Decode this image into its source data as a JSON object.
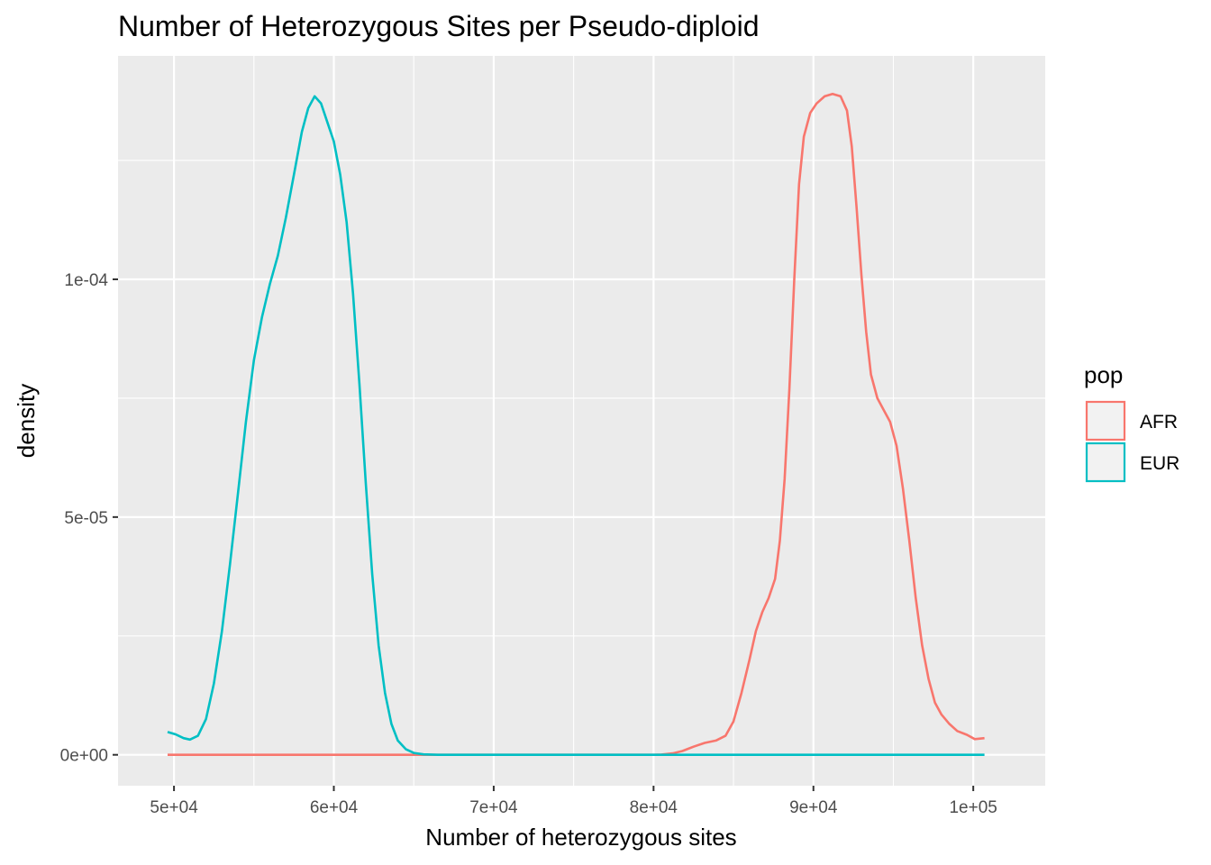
{
  "chart_data": {
    "type": "line",
    "title": "Number of Heterozygous Sites per Pseudo-diploid",
    "xlabel": "Number of heterozygous sites",
    "ylabel": "density",
    "xlim": [
      46500,
      104500
    ],
    "ylim": [
      -6.5e-06,
      0.000147
    ],
    "x_ticks": [
      {
        "value": 50000,
        "label": "5e+04"
      },
      {
        "value": 60000,
        "label": "6e+04"
      },
      {
        "value": 70000,
        "label": "7e+04"
      },
      {
        "value": 80000,
        "label": "8e+04"
      },
      {
        "value": 90000,
        "label": "9e+04"
      },
      {
        "value": 100000,
        "label": "1e+05"
      }
    ],
    "y_ticks": [
      {
        "value": 0,
        "label": "0e+00"
      },
      {
        "value": 5e-05,
        "label": "5e-05"
      },
      {
        "value": 0.0001,
        "label": "1e-04"
      }
    ],
    "grid": true,
    "panel_background": "#ebebeb",
    "legend": {
      "title": "pop",
      "position": "right"
    },
    "series": [
      {
        "name": "AFR",
        "color": "#f8766d",
        "points": [
          [
            49600,
            0
          ],
          [
            60000,
            0
          ],
          [
            70000,
            0
          ],
          [
            80000,
            0
          ],
          [
            80500,
            5e-08
          ],
          [
            81200,
            3e-07
          ],
          [
            81800,
            8e-07
          ],
          [
            82500,
            1.7e-06
          ],
          [
            83200,
            2.5e-06
          ],
          [
            83900,
            3e-06
          ],
          [
            84500,
            4e-06
          ],
          [
            85000,
            7e-06
          ],
          [
            85500,
            1.3e-05
          ],
          [
            86000,
            2e-05
          ],
          [
            86400,
            2.6e-05
          ],
          [
            86800,
            3e-05
          ],
          [
            87200,
            3.3e-05
          ],
          [
            87600,
            3.7e-05
          ],
          [
            87900,
            4.5e-05
          ],
          [
            88200,
            5.8e-05
          ],
          [
            88500,
            7.7e-05
          ],
          [
            88800,
            0.0001
          ],
          [
            89100,
            0.00012
          ],
          [
            89400,
            0.00013
          ],
          [
            89800,
            0.000135
          ],
          [
            90200,
            0.000137
          ],
          [
            90700,
            0.0001385
          ],
          [
            91200,
            0.000139
          ],
          [
            91700,
            0.0001385
          ],
          [
            92100,
            0.0001355
          ],
          [
            92400,
            0.000128
          ],
          [
            92700,
            0.000115
          ],
          [
            93000,
            0.000101
          ],
          [
            93300,
            8.9e-05
          ],
          [
            93600,
            8e-05
          ],
          [
            94000,
            7.5e-05
          ],
          [
            94400,
            7.25e-05
          ],
          [
            94800,
            7e-05
          ],
          [
            95200,
            6.5e-05
          ],
          [
            95600,
            5.6e-05
          ],
          [
            96000,
            4.5e-05
          ],
          [
            96400,
            3.3e-05
          ],
          [
            96800,
            2.3e-05
          ],
          [
            97200,
            1.6e-05
          ],
          [
            97600,
            1.1e-05
          ],
          [
            98000,
            8.5e-06
          ],
          [
            98500,
            6.5e-06
          ],
          [
            99000,
            5e-06
          ],
          [
            99600,
            4.2e-06
          ],
          [
            100100,
            3.3e-06
          ],
          [
            100700,
            3.5e-06
          ]
        ]
      },
      {
        "name": "EUR",
        "color": "#00bfc4",
        "points": [
          [
            49600,
            4.8e-06
          ],
          [
            50100,
            4.3e-06
          ],
          [
            50600,
            3.5e-06
          ],
          [
            51000,
            3.2e-06
          ],
          [
            51500,
            4e-06
          ],
          [
            52000,
            7.5e-06
          ],
          [
            52500,
            1.5e-05
          ],
          [
            53000,
            2.6e-05
          ],
          [
            53500,
            4e-05
          ],
          [
            54000,
            5.5e-05
          ],
          [
            54500,
            7e-05
          ],
          [
            55000,
            8.3e-05
          ],
          [
            55500,
            9.2e-05
          ],
          [
            56000,
            9.9e-05
          ],
          [
            56500,
            0.000105
          ],
          [
            57000,
            0.000113
          ],
          [
            57500,
            0.000122
          ],
          [
            58000,
            0.000131
          ],
          [
            58400,
            0.000136
          ],
          [
            58800,
            0.0001385
          ],
          [
            59200,
            0.000137
          ],
          [
            59600,
            0.000133
          ],
          [
            60000,
            0.000129
          ],
          [
            60400,
            0.000122
          ],
          [
            60800,
            0.000112
          ],
          [
            61200,
            9.7e-05
          ],
          [
            61600,
            7.8e-05
          ],
          [
            62000,
            5.7e-05
          ],
          [
            62400,
            3.8e-05
          ],
          [
            62800,
            2.3e-05
          ],
          [
            63200,
            1.3e-05
          ],
          [
            63600,
            6.5e-06
          ],
          [
            64000,
            3e-06
          ],
          [
            64500,
            1.2e-06
          ],
          [
            65000,
            4e-07
          ],
          [
            65600,
            1e-07
          ],
          [
            66500,
            0
          ],
          [
            70000,
            0
          ],
          [
            80000,
            0
          ],
          [
            90000,
            0
          ],
          [
            100700,
            0
          ]
        ]
      }
    ]
  }
}
